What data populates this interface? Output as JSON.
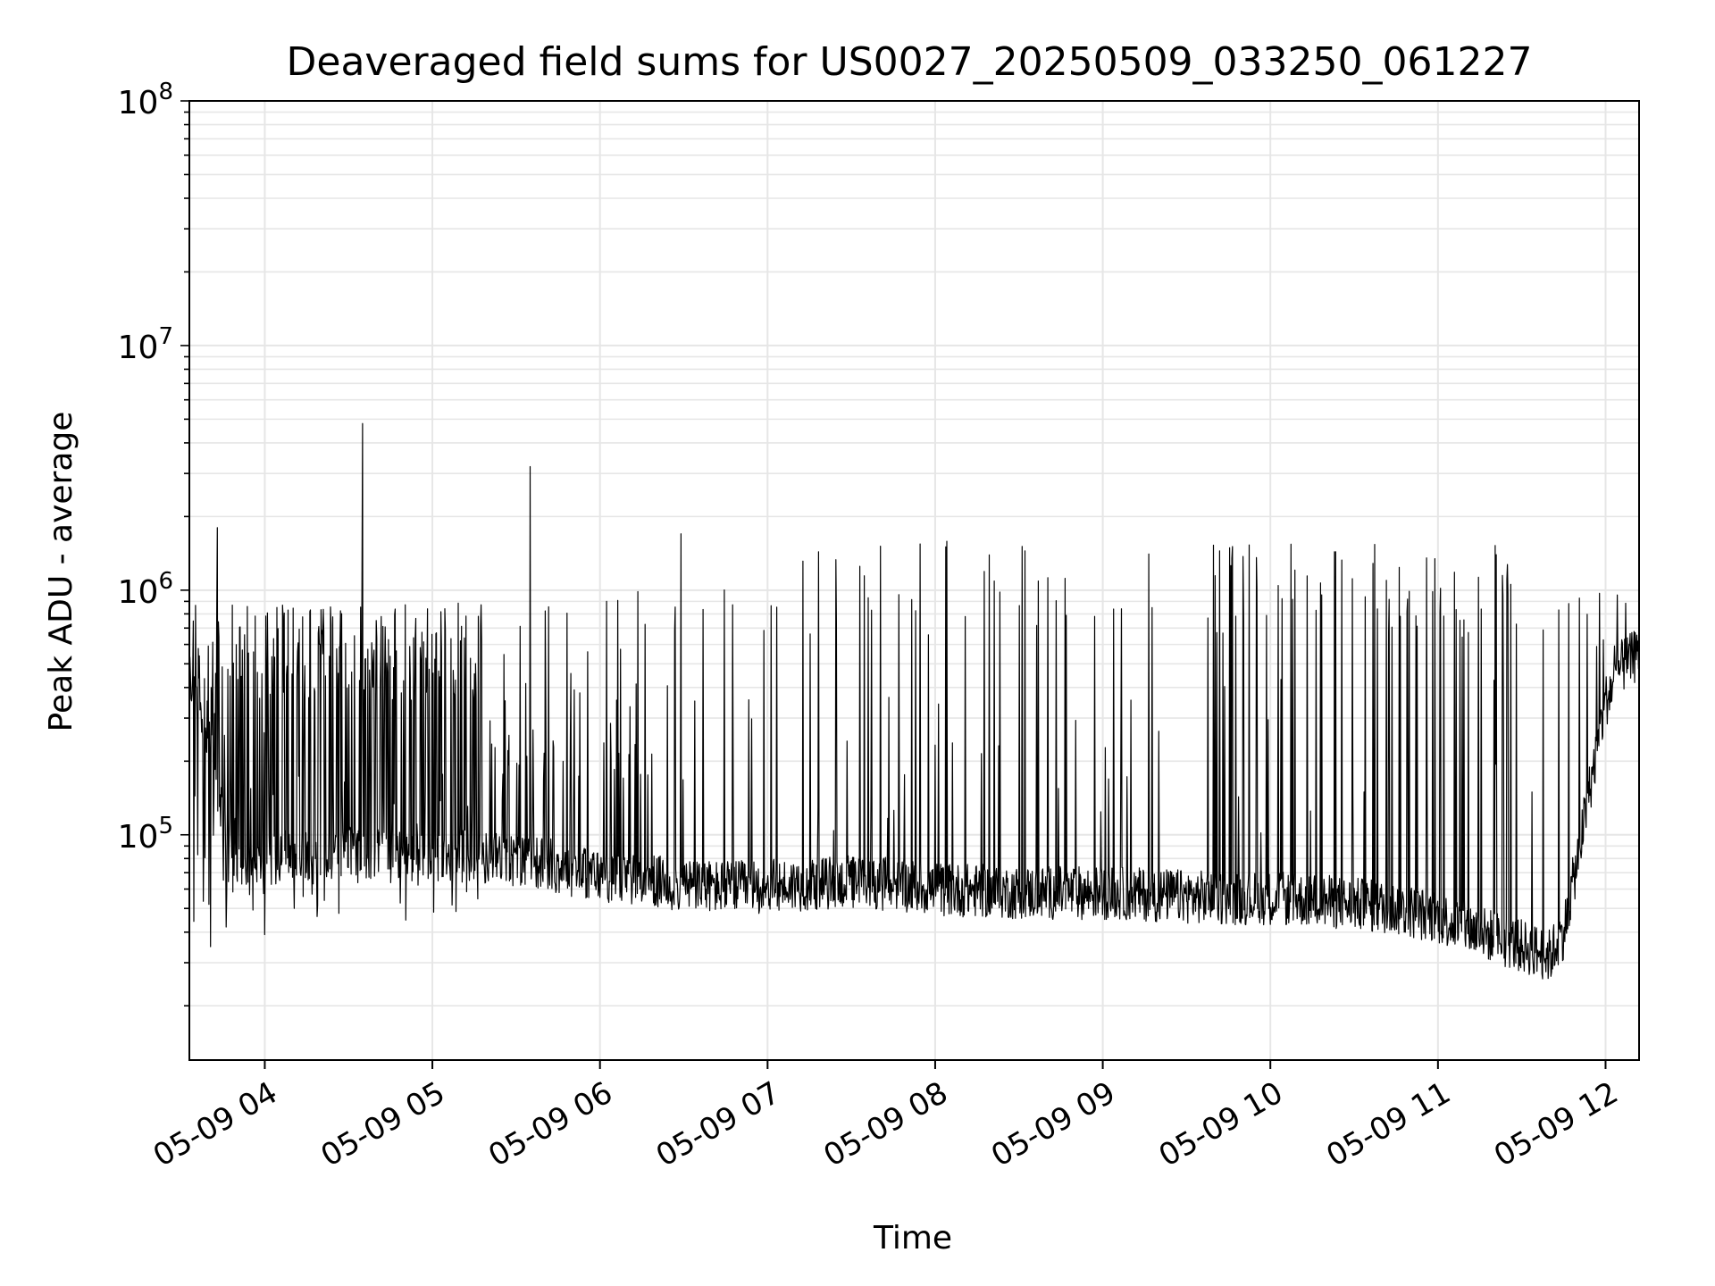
{
  "chart_data": {
    "type": "line",
    "title": "Deaveraged field sums for US0027_20250509_033250_061227",
    "xlabel": "Time",
    "ylabel": "Peak ADU - average",
    "yscale": "log",
    "ylim": [
      12000,
      100000000
    ],
    "xlim": [
      "2025-05-09 03:33",
      "2025-05-09 12:12"
    ],
    "x_ticks": [
      "05-09 04",
      "05-09 05",
      "05-09 06",
      "05-09 07",
      "05-09 08",
      "05-09 09",
      "05-09 10",
      "05-09 11",
      "05-09 12"
    ],
    "y_ticks": [
      {
        "value": 100000,
        "base": "10",
        "exp": "5"
      },
      {
        "value": 1000000,
        "base": "10",
        "exp": "6"
      },
      {
        "value": 10000000,
        "base": "10",
        "exp": "7"
      },
      {
        "value": 100000000,
        "base": "10",
        "exp": "8"
      }
    ],
    "grid": true,
    "line_color": "#000000",
    "grid_color": "#e6e6e6",
    "series": [
      {
        "x": [
          "2025-05-09 03:33",
          "2025-05-09 03:35",
          "2025-05-09 03:38",
          "2025-05-09 03:42",
          "2025-05-09 03:46",
          "2025-05-09 03:50",
          "2025-05-09 03:55",
          "2025-05-09 04:00",
          "2025-05-09 04:10",
          "2025-05-09 04:20",
          "2025-05-09 04:30",
          "2025-05-09 04:35",
          "2025-05-09 04:40",
          "2025-05-09 04:50",
          "2025-05-09 05:00",
          "2025-05-09 05:10",
          "2025-05-09 05:20",
          "2025-05-09 05:35",
          "2025-05-09 05:45",
          "2025-05-09 05:55",
          "2025-05-09 06:05",
          "2025-05-09 06:15",
          "2025-05-09 06:25",
          "2025-05-09 06:35",
          "2025-05-09 06:45",
          "2025-05-09 06:55",
          "2025-05-09 07:05",
          "2025-05-09 07:15",
          "2025-05-09 07:30",
          "2025-05-09 07:45",
          "2025-05-09 08:00",
          "2025-05-09 08:15",
          "2025-05-09 08:30",
          "2025-05-09 08:45",
          "2025-05-09 09:00",
          "2025-05-09 09:15",
          "2025-05-09 09:30",
          "2025-05-09 09:45",
          "2025-05-09 10:00",
          "2025-05-09 10:15",
          "2025-05-09 10:30",
          "2025-05-09 10:45",
          "2025-05-09 11:00",
          "2025-05-09 11:15",
          "2025-05-09 11:30",
          "2025-05-09 11:40",
          "2025-05-09 11:45",
          "2025-05-09 11:50",
          "2025-05-09 11:55",
          "2025-05-09 12:00",
          "2025-05-09 12:05",
          "2025-05-09 12:12"
        ],
        "y": [
          450000,
          400000,
          300000,
          180000,
          110000,
          80000,
          70000,
          75000,
          80000,
          85000,
          85000,
          80000,
          82000,
          80000,
          80000,
          82000,
          80000,
          78000,
          74000,
          70000,
          67000,
          65000,
          63000,
          62000,
          61000,
          61000,
          62000,
          63000,
          64000,
          63000,
          60000,
          59000,
          58000,
          58000,
          58000,
          57000,
          56000,
          55000,
          55000,
          54000,
          52000,
          50000,
          46000,
          40000,
          35000,
          32000,
          40000,
          80000,
          170000,
          350000,
          480000,
          550000
        ]
      }
    ],
    "spikes": [
      {
        "x": "2025-05-09 03:43",
        "y": 1800000
      },
      {
        "x": "2025-05-09 04:35",
        "y": 4800000
      },
      {
        "x": "2025-05-09 05:35",
        "y": 3200000
      },
      {
        "x": "2025-05-09 06:29",
        "y": 1700000
      }
    ]
  }
}
